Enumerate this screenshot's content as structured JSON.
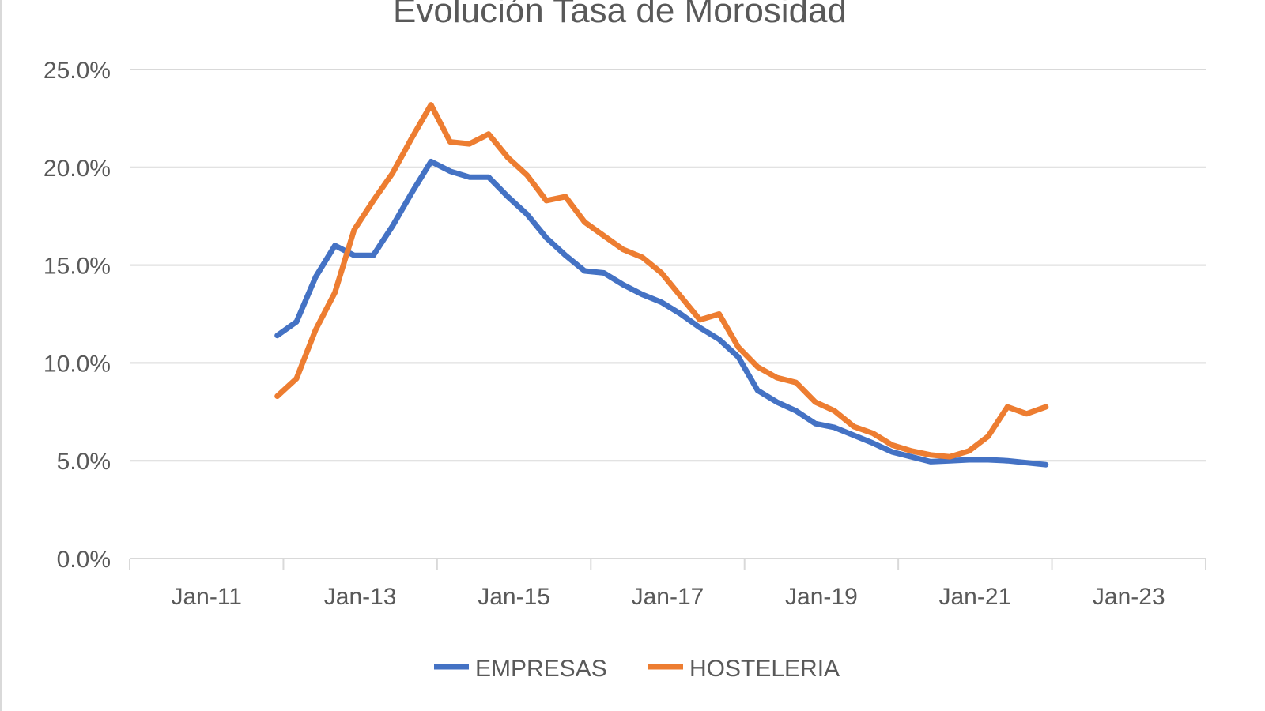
{
  "chart_data": {
    "type": "line",
    "title": "Evolución Tasa de Morosidad",
    "xlabel": "",
    "ylabel": "",
    "ylim": [
      0,
      25
    ],
    "xlim": [
      2010,
      2024
    ],
    "yticks": [
      0,
      5,
      10,
      15,
      20,
      25
    ],
    "ytick_labels": [
      "0.0%",
      "5.0%",
      "10.0%",
      "15.0%",
      "20.0%",
      "25.0%"
    ],
    "xticks": [
      2011,
      2013,
      2015,
      2017,
      2019,
      2021,
      2023
    ],
    "xtick_labels": [
      "Jan-11",
      "Jan-13",
      "Jan-15",
      "Jan-17",
      "Jan-19",
      "Jan-21",
      "Jan-23"
    ],
    "grid": true,
    "legend_position": "bottom",
    "x": [
      2011.92,
      2012.17,
      2012.42,
      2012.67,
      2012.92,
      2013.17,
      2013.42,
      2013.67,
      2013.92,
      2014.17,
      2014.42,
      2014.67,
      2014.92,
      2015.17,
      2015.42,
      2015.67,
      2015.92,
      2016.17,
      2016.42,
      2016.67,
      2016.92,
      2017.17,
      2017.42,
      2017.67,
      2017.92,
      2018.17,
      2018.42,
      2018.67,
      2018.92,
      2019.17,
      2019.42,
      2019.67,
      2019.92,
      2020.17,
      2020.42,
      2020.67,
      2020.92,
      2021.17,
      2021.42,
      2021.67,
      2021.92
    ],
    "series": [
      {
        "name": "EMPRESAS",
        "color": "#4472c4",
        "values": [
          11.4,
          12.1,
          14.4,
          16.0,
          15.5,
          15.5,
          17.0,
          18.7,
          20.3,
          19.8,
          19.5,
          19.5,
          18.5,
          17.6,
          16.4,
          15.5,
          14.7,
          14.6,
          14.0,
          13.5,
          13.1,
          12.5,
          11.8,
          11.2,
          10.3,
          8.6,
          8.0,
          7.55,
          6.9,
          6.7,
          6.3,
          5.9,
          5.45,
          5.2,
          4.95,
          5.0,
          5.05,
          5.05,
          5.0,
          4.9,
          4.8
        ]
      },
      {
        "name": "HOSTELERIA",
        "color": "#ed7d31",
        "values": [
          8.3,
          9.2,
          11.7,
          13.6,
          16.8,
          18.3,
          19.7,
          21.5,
          23.2,
          21.3,
          21.2,
          21.7,
          20.5,
          19.6,
          18.3,
          18.5,
          17.2,
          16.5,
          15.8,
          15.4,
          14.6,
          13.4,
          12.2,
          12.5,
          10.8,
          9.8,
          9.25,
          9.0,
          8.0,
          7.55,
          6.75,
          6.4,
          5.8,
          5.5,
          5.3,
          5.2,
          5.5,
          6.25,
          7.75,
          7.4,
          7.75
        ]
      }
    ]
  }
}
